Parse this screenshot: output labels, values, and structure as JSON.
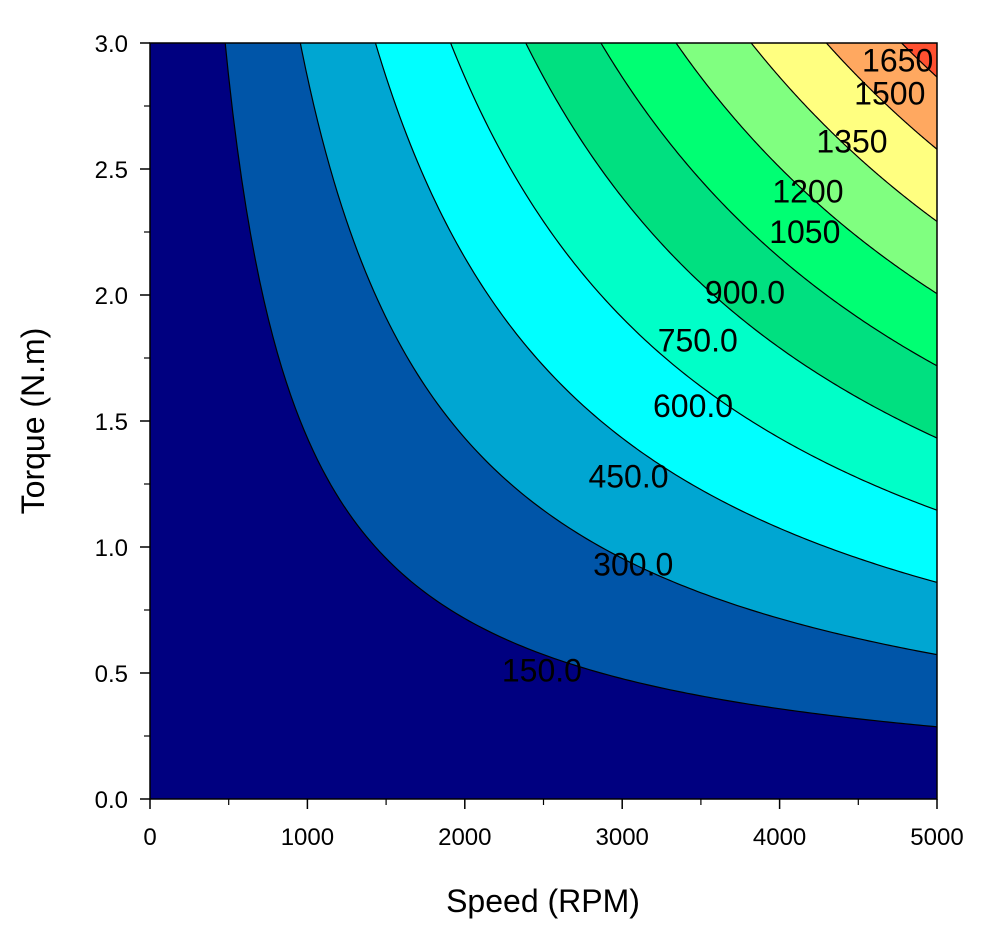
{
  "chart_data": {
    "type": "contour",
    "title": "",
    "xlabel": "Speed (RPM)",
    "ylabel": "Torque (N.m)",
    "xlim": [
      0,
      5000
    ],
    "ylim": [
      0,
      3.0
    ],
    "x_ticks": [
      0,
      1000,
      2000,
      3000,
      4000,
      5000
    ],
    "x_tick_labels": [
      "0",
      "1000",
      "2000",
      "3000",
      "4000",
      "5000"
    ],
    "y_ticks": [
      0,
      0.5,
      1.0,
      1.5,
      2.0,
      2.5,
      3.0
    ],
    "y_tick_labels": [
      "0.0",
      "0.5",
      "1.0",
      "1.5",
      "2.0",
      "2.5",
      "3.0"
    ],
    "grid": false,
    "z_function": "speed * torque * 2 * pi / 60",
    "levels": [
      150,
      300,
      450,
      600,
      750,
      900,
      1050,
      1200,
      1350,
      1500,
      1650
    ],
    "level_labels": [
      "150.0",
      "300.0",
      "450.0",
      "600.0",
      "750.0",
      "900.0",
      "1050",
      "1200",
      "1350",
      "1500",
      "1650"
    ],
    "label_positions": [
      {
        "speed": 2490,
        "torque": 0.51
      },
      {
        "speed": 3070,
        "torque": 0.93
      },
      {
        "speed": 3040,
        "torque": 1.28
      },
      {
        "speed": 3450,
        "torque": 1.56
      },
      {
        "speed": 3480,
        "torque": 1.82
      },
      {
        "speed": 3780,
        "torque": 2.01
      },
      {
        "speed": 4160,
        "torque": 2.25
      },
      {
        "speed": 4180,
        "torque": 2.41
      },
      {
        "speed": 4460,
        "torque": 2.61
      },
      {
        "speed": 4700,
        "torque": 2.8
      },
      {
        "speed": 4750,
        "torque": 2.93
      }
    ],
    "fill_colors": [
      "#000080",
      "#0055a8",
      "#00a6d2",
      "#00ffff",
      "#00ffc8",
      "#00e080",
      "#00ff73",
      "#80ff80",
      "#ffff80",
      "#ffa860",
      "#ff5030",
      "#ff0000"
    ]
  }
}
